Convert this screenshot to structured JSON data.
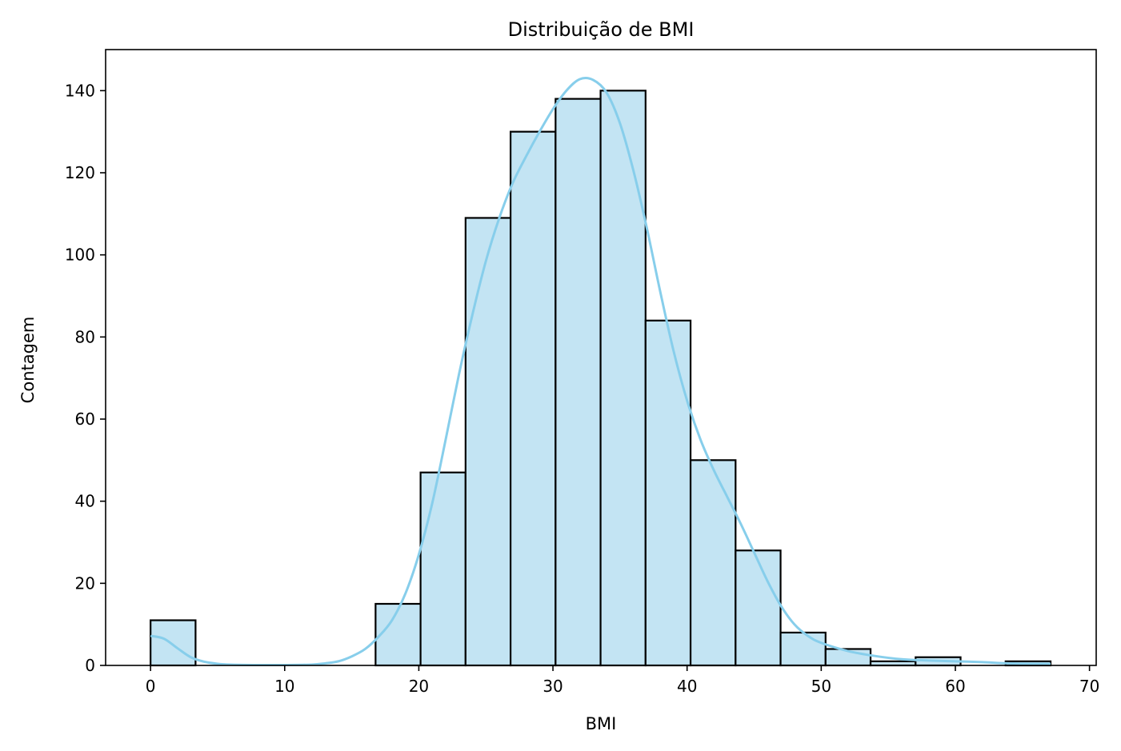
{
  "chart_data": {
    "type": "bar",
    "subtype": "histogram-with-kde",
    "title": "Distribuição de BMI",
    "xlabel": "BMI",
    "ylabel": "Contagem",
    "xlim": [
      -3.35,
      70.5
    ],
    "ylim": [
      0,
      150
    ],
    "x_ticks": [
      0,
      10,
      20,
      30,
      40,
      50,
      60,
      70
    ],
    "y_ticks": [
      0,
      20,
      40,
      60,
      80,
      100,
      120,
      140
    ],
    "grid": false,
    "bin_width": 3.355,
    "bins": [
      {
        "x0": 0.0,
        "x1": 3.355,
        "count": 11
      },
      {
        "x0": 3.355,
        "x1": 6.71,
        "count": 0
      },
      {
        "x0": 6.71,
        "x1": 10.065,
        "count": 0
      },
      {
        "x0": 10.065,
        "x1": 13.42,
        "count": 0
      },
      {
        "x0": 13.42,
        "x1": 16.775,
        "count": 0
      },
      {
        "x0": 16.775,
        "x1": 20.13,
        "count": 15
      },
      {
        "x0": 20.13,
        "x1": 23.485,
        "count": 47
      },
      {
        "x0": 23.485,
        "x1": 26.84,
        "count": 109
      },
      {
        "x0": 26.84,
        "x1": 30.195,
        "count": 130
      },
      {
        "x0": 30.195,
        "x1": 33.55,
        "count": 138
      },
      {
        "x0": 33.55,
        "x1": 36.905,
        "count": 140
      },
      {
        "x0": 36.905,
        "x1": 40.26,
        "count": 84
      },
      {
        "x0": 40.26,
        "x1": 43.615,
        "count": 50
      },
      {
        "x0": 43.615,
        "x1": 46.97,
        "count": 28
      },
      {
        "x0": 46.97,
        "x1": 50.325,
        "count": 8
      },
      {
        "x0": 50.325,
        "x1": 53.68,
        "count": 4
      },
      {
        "x0": 53.68,
        "x1": 57.035,
        "count": 1
      },
      {
        "x0": 57.035,
        "x1": 60.39,
        "count": 2
      },
      {
        "x0": 60.39,
        "x1": 63.745,
        "count": 0
      },
      {
        "x0": 63.745,
        "x1": 67.1,
        "count": 1
      }
    ],
    "kde": {
      "x": [
        0,
        1,
        2,
        3,
        4,
        5,
        6,
        8,
        10,
        12,
        13,
        14,
        15,
        16,
        17,
        18,
        19,
        20,
        21,
        22,
        23,
        24,
        25,
        26,
        27,
        28,
        29,
        30,
        31,
        32,
        33,
        34,
        35,
        36,
        37,
        38,
        39,
        40,
        41,
        42,
        43,
        44,
        45,
        46,
        47,
        48,
        49,
        50,
        52,
        54,
        56,
        58,
        60,
        62,
        64,
        67.1
      ],
      "y": [
        7.2,
        6.5,
        4.2,
        2.0,
        0.9,
        0.4,
        0.2,
        0.1,
        0.1,
        0.2,
        0.5,
        1.0,
        2.2,
        4.0,
        7.0,
        11.0,
        17.5,
        27.0,
        39.5,
        55.0,
        71.0,
        85.5,
        98.5,
        109.0,
        117.5,
        124.0,
        130.0,
        135.5,
        140.0,
        142.8,
        142.6,
        139.5,
        132.0,
        120.5,
        106.5,
        91.0,
        76.5,
        64.5,
        55.0,
        47.5,
        41.0,
        34.5,
        27.5,
        20.5,
        14.5,
        10.0,
        7.2,
        5.5,
        3.5,
        2.3,
        1.5,
        1.2,
        1.0,
        0.8,
        0.5,
        0.4
      ]
    },
    "bar_fill": "#c3e4f3",
    "bar_edge": "#000000",
    "kde_color": "#87ceeb"
  }
}
